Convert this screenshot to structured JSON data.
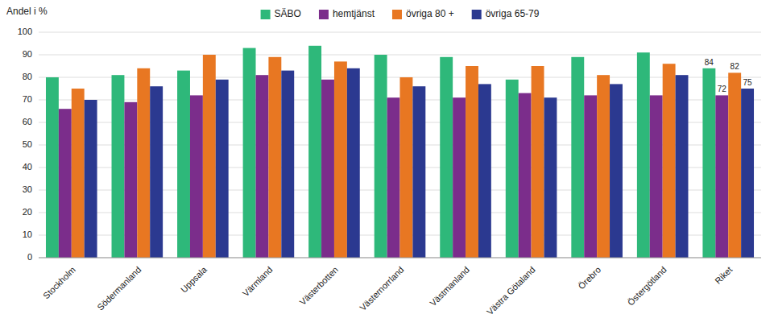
{
  "chart_data": {
    "type": "bar",
    "ylabel": "Andel i %",
    "categories": [
      "Stockholm",
      "Södermanland",
      "Uppsala",
      "Värmland",
      "Västerbotten",
      "Västernorrland",
      "Västmanland",
      "Västra Götaland",
      "Örebro",
      "Östergötland",
      "Riket"
    ],
    "series": [
      {
        "name": "SÄBO",
        "color": "#2EB87A",
        "values": [
          80,
          81,
          83,
          93,
          94,
          90,
          89,
          79,
          89,
          91,
          84
        ]
      },
      {
        "name": "hemtjänst",
        "color": "#7B2D8B",
        "values": [
          66,
          69,
          72,
          81,
          79,
          71,
          71,
          73,
          72,
          72,
          72
        ]
      },
      {
        "name": "övriga 80 +",
        "color": "#E87722",
        "values": [
          75,
          84,
          90,
          89,
          87,
          80,
          85,
          85,
          81,
          86,
          82
        ]
      },
      {
        "name": "övriga 65-79",
        "color": "#2B3990",
        "values": [
          70,
          76,
          79,
          83,
          84,
          76,
          77,
          71,
          77,
          81,
          75
        ]
      }
    ],
    "annotations": [
      {
        "text": "84",
        "category": "Riket",
        "series": "SÄBO"
      },
      {
        "text": "72",
        "category": "Riket",
        "series": "hemtjänst"
      },
      {
        "text": "82",
        "category": "Riket",
        "series": "övriga 80 +"
      },
      {
        "text": "75",
        "category": "Riket",
        "series": "övriga 65-79"
      }
    ],
    "ylim": [
      0,
      100
    ],
    "yticks": [
      0,
      10,
      20,
      30,
      40,
      50,
      60,
      70,
      80,
      90,
      100
    ],
    "grid": true,
    "legend": "top"
  }
}
